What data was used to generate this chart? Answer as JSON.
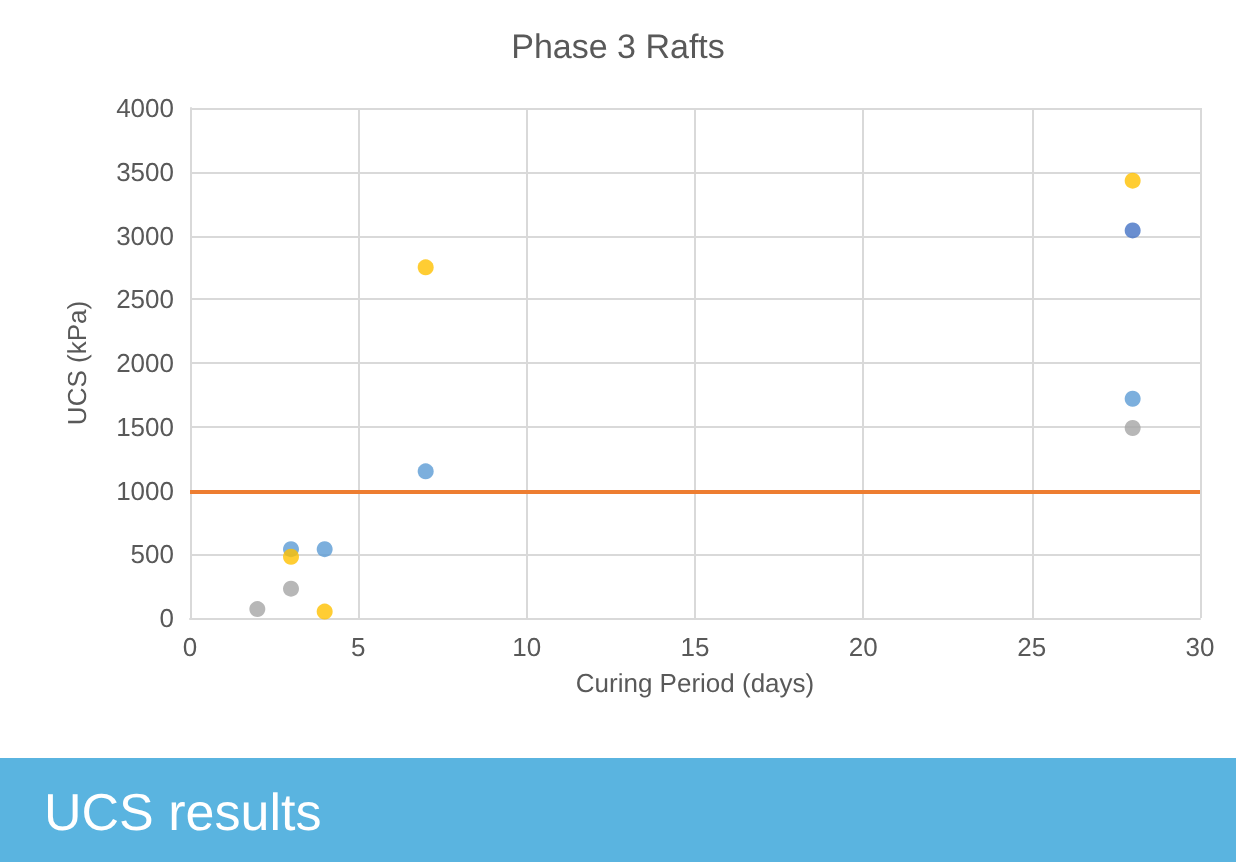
{
  "chart_data": {
    "type": "scatter",
    "title": "Phase 3 Rafts",
    "xlabel": "Curing Period (days)",
    "ylabel": "UCS (kPa)",
    "annotations": [
      "UCS results"
    ],
    "xlim": [
      0,
      30
    ],
    "xticks": [
      0,
      5,
      10,
      15,
      20,
      25,
      30
    ],
    "ylim": [
      0,
      4000
    ],
    "yticks": [
      0,
      500,
      1000,
      1500,
      2000,
      2500,
      3000,
      3500,
      4000
    ],
    "grid": true,
    "marker": "circle",
    "series": [
      {
        "color": "#5b9bd5",
        "x": [
          3,
          4,
          7,
          28
        ],
        "values": [
          540,
          540,
          1150,
          1720
        ]
      },
      {
        "color": "#ffc000",
        "x": [
          3,
          4,
          7,
          28
        ],
        "values": [
          480,
          50,
          2750,
          3430
        ]
      },
      {
        "color": "#a5a5a5",
        "x": [
          2,
          3,
          28
        ],
        "values": [
          70,
          230,
          1490
        ]
      },
      {
        "color": "#4472c4",
        "x": [
          28
        ],
        "values": [
          3040
        ]
      }
    ],
    "ref_lines": [
      {
        "axis": "y",
        "value": 1000,
        "color": "#ed7d31"
      }
    ]
  }
}
